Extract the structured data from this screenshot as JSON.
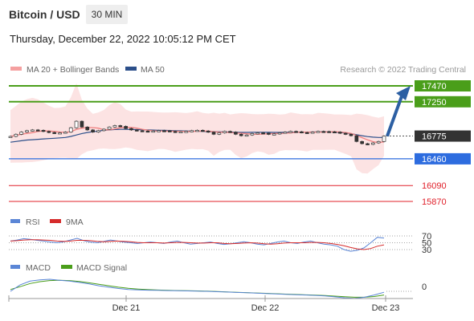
{
  "header": {
    "pair": "Bitcoin / USD",
    "timeframe": "30 MIN",
    "datetime": "Thursday, December 22, 2022 10:05:12 PM CET"
  },
  "legend": {
    "bollinger": "MA 20 + Bollinger Bands",
    "ma50": "MA 50",
    "credit": "Research © 2022 Trading Central"
  },
  "colors": {
    "green": "#4a9e1a",
    "blue": "#2d6cdf",
    "red": "#e0202a",
    "dark": "#333333",
    "arrow": "#2c5fa3",
    "band": "#f7c0c0",
    "rsi": "#5b86d6",
    "nine_ma": "#d62b2b",
    "macd": "#5b86d6",
    "macd_signal": "#4a9e1a"
  },
  "chart_data": {
    "type": "line",
    "x_labels": [
      "Dec 21",
      "Dec 22",
      "Dec 23"
    ],
    "levels": [
      {
        "label": "17470",
        "value": 17470,
        "kind": "resistance",
        "color": "#4a9e1a"
      },
      {
        "label": "17250",
        "value": 17250,
        "kind": "resistance",
        "color": "#4a9e1a"
      },
      {
        "label": "16775",
        "value": 16775,
        "kind": "current",
        "color": "#333333"
      },
      {
        "label": "16460",
        "value": 16460,
        "kind": "support",
        "color": "#2d6cdf"
      },
      {
        "label": "16090",
        "value": 16090,
        "kind": "support2",
        "color": "#e0202a"
      },
      {
        "label": "15870",
        "value": 15870,
        "kind": "support3",
        "color": "#e0202a"
      }
    ],
    "price_range": [
      15800,
      17550
    ],
    "price_series": [
      16770,
      16800,
      16830,
      16850,
      16860,
      16855,
      16840,
      16825,
      16815,
      16820,
      16830,
      16890,
      16980,
      16900,
      16860,
      16830,
      16850,
      16870,
      16900,
      16920,
      16910,
      16880,
      16860,
      16850,
      16845,
      16840,
      16845,
      16850,
      16848,
      16840,
      16830,
      16835,
      16840,
      16850,
      16855,
      16845,
      16830,
      16800,
      16820,
      16840,
      16830,
      16800,
      16780,
      16790,
      16810,
      16820,
      16815,
      16800,
      16805,
      16820,
      16830,
      16840,
      16835,
      16825,
      16820,
      16830,
      16840,
      16838,
      16835,
      16830,
      16815,
      16800,
      16780,
      16700,
      16670,
      16660,
      16680,
      16700,
      16775
    ],
    "ma50_series": [
      16690,
      16700,
      16710,
      16720,
      16725,
      16730,
      16735,
      16740,
      16745,
      16750,
      16755,
      16770,
      16790,
      16810,
      16825,
      16835,
      16845,
      16855,
      16860,
      16865,
      16868,
      16868,
      16866,
      16864,
      16862,
      16860,
      16858,
      16856,
      16854,
      16852,
      16850,
      16848,
      16846,
      16844,
      16842,
      16840,
      16838,
      16836,
      16834,
      16832,
      16830,
      16828,
      16826,
      16826,
      16827,
      16828,
      16828,
      16827,
      16826,
      16826,
      16827,
      16828,
      16829,
      16830,
      16830,
      16831,
      16832,
      16832,
      16832,
      16830,
      16825,
      16818,
      16808,
      16795,
      16780,
      16768,
      16760,
      16756,
      16755
    ],
    "annotation": "Arrow pointing up toward 17470",
    "rsi": {
      "label": "RSI",
      "signal_label": "9MA",
      "levels": [
        {
          "label": "70",
          "value": 70
        },
        {
          "label": "50",
          "value": 50
        },
        {
          "label": "30",
          "value": 30
        }
      ],
      "rsi_series": [
        55,
        58,
        62,
        60,
        57,
        55,
        52,
        50,
        53,
        58,
        63,
        56,
        52,
        50,
        54,
        58,
        55,
        52,
        50,
        48,
        50,
        52,
        50,
        48,
        52,
        55,
        50,
        46,
        48,
        50,
        52,
        48,
        45,
        47,
        50,
        53,
        50,
        46,
        44,
        48,
        52,
        55,
        50,
        48,
        52,
        55,
        50,
        46,
        44,
        40,
        30,
        25,
        28,
        35,
        50,
        66,
        64
      ],
      "ma9_series": [
        55,
        56,
        58,
        59,
        59,
        58,
        57,
        55,
        54,
        55,
        57,
        57,
        56,
        54,
        53,
        54,
        55,
        54,
        53,
        51,
        50,
        50,
        50,
        49,
        50,
        51,
        51,
        50,
        49,
        49,
        50,
        50,
        48,
        47,
        48,
        49,
        50,
        49,
        47,
        46,
        47,
        49,
        50,
        50,
        50,
        51,
        51,
        50,
        48,
        45,
        41,
        36,
        32,
        30,
        33,
        40,
        44
      ]
    },
    "macd": {
      "label": "MACD",
      "signal_label": "MACD Signal",
      "levels": [
        {
          "label": "0",
          "value": 0
        }
      ],
      "macd_series": [
        0,
        35,
        55,
        62,
        65,
        60,
        55,
        48,
        40,
        30,
        22,
        15,
        10,
        8,
        6,
        5,
        4,
        3,
        2,
        1,
        0,
        -2,
        -4,
        -6,
        -8,
        -10,
        -12,
        -14,
        -16,
        -18,
        -20,
        -22,
        -25,
        -30,
        -35,
        -38,
        -32,
        -20,
        -5
      ],
      "signal_series": [
        10,
        25,
        42,
        52,
        58,
        60,
        58,
        53,
        46,
        38,
        30,
        22,
        16,
        12,
        9,
        7,
        5,
        4,
        3,
        2,
        1,
        -1,
        -3,
        -5,
        -7,
        -9,
        -11,
        -13,
        -15,
        -17,
        -19,
        -21,
        -23,
        -26,
        -29,
        -32,
        -32,
        -28,
        -20
      ],
      "range": [
        -45,
        80
      ]
    }
  }
}
